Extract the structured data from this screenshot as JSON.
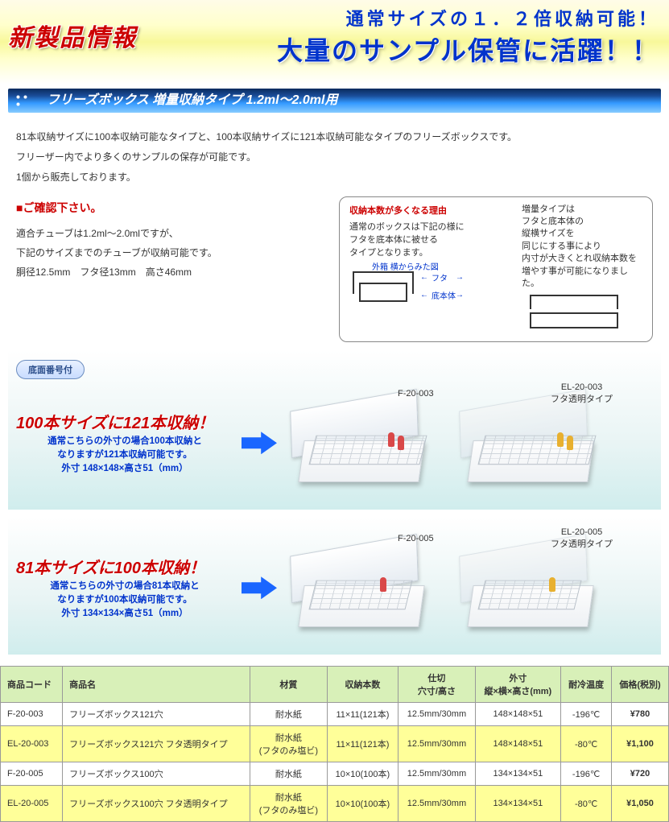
{
  "hero": {
    "badge": "新製品情報",
    "line1": "通常サイズの１．２倍収納可能！",
    "line2": "大量のサンプル保管に活躍！！"
  },
  "titlebar": "フリーズボックス  増量収納タイプ  1.2ml〜2.0ml用",
  "intro": {
    "p1": "81本収納サイズに100本収納可能なタイプと、100本収納サイズに121本収納可能なタイプのフリーズボックスです。",
    "p2": "フリーザー内でより多くのサンプルの保存が可能です。",
    "p3": "1個から販売しております。"
  },
  "confirm": {
    "head": "■ご確認下さい。",
    "l1": "適合チューブは1.2ml〜2.0mlですが、",
    "l2": "下記のサイズまでのチューブが収納可能です。",
    "l3": "胴径12.5mm　フタ径13mm　高さ46mm"
  },
  "infobox": {
    "title": "収納本数が多くなる理由",
    "left1": "通常のボックスは下記の様に",
    "left2": "フタを底本体に被せる",
    "left3": "タイプとなります。",
    "diag_top": "外箱 横からみた図",
    "diag_futa": "フタ",
    "diag_base": "底本体",
    "right": "増量タイプは\nフタと底本体の\n縦横サイズを\n同じにする事により\n内寸が大きくとれ収納本数を\n増やす事が可能になりました。"
  },
  "badge_oval": "底面番号付",
  "prod1": {
    "head": "100本サイズに121本収納！",
    "note": "通常こちらの外寸の場合100本収納と\nなりますが121本収納可能です。\n外寸 148×148×高さ51（mm）",
    "code_a": "F-20-003",
    "code_b": "EL-20-003",
    "code_b_sub": "フタ透明タイプ"
  },
  "prod2": {
    "head": "81本サイズに100本収納！",
    "note": "通常こちらの外寸の場合81本収納と\nなりますが100本収納可能です。\n外寸 134×134×高さ51（mm）",
    "code_a": "F-20-005",
    "code_b": "EL-20-005",
    "code_b_sub": "フタ透明タイプ"
  },
  "table": {
    "headers": [
      "商品コード",
      "商品名",
      "材質",
      "収納本数",
      "仕切\n穴寸/高さ",
      "外寸\n縦×横×高さ(mm)",
      "耐冷温度",
      "価格(税別)"
    ],
    "rows": [
      {
        "hl": false,
        "cells": [
          "F-20-003",
          "フリーズボックス121穴",
          "耐水紙",
          "11×11(121本)",
          "12.5mm/30mm",
          "148×148×51",
          "-196℃",
          "¥780"
        ]
      },
      {
        "hl": true,
        "cells": [
          "EL-20-003",
          "フリーズボックス121穴 フタ透明タイプ",
          "耐水紙\n(フタのみ塩ビ)",
          "11×11(121本)",
          "12.5mm/30mm",
          "148×148×51",
          "-80℃",
          "¥1,100"
        ]
      },
      {
        "hl": false,
        "cells": [
          "F-20-005",
          "フリーズボックス100穴",
          "耐水紙",
          "10×10(100本)",
          "12.5mm/30mm",
          "134×134×51",
          "-196℃",
          "¥720"
        ]
      },
      {
        "hl": true,
        "cells": [
          "EL-20-005",
          "フリーズボックス100穴 フタ透明タイプ",
          "耐水紙\n(フタのみ塩ビ)",
          "10×10(100本)",
          "12.5mm/30mm",
          "134×134×51",
          "-80℃",
          "¥1,050"
        ]
      }
    ]
  }
}
